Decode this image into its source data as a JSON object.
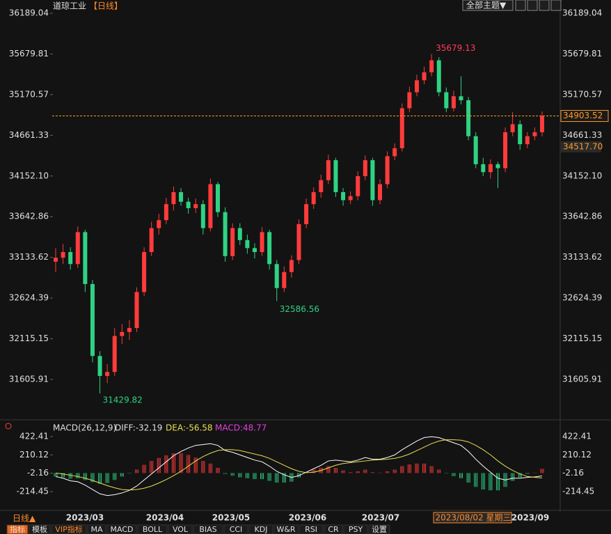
{
  "header": {
    "title": "道琼工业",
    "period": "【日线】",
    "theme_button": "全部主题▼"
  },
  "chart_data": {
    "type": "candlestick",
    "ylim": [
      31127,
      36311
    ],
    "yticks": [
      36189.04,
      35679.81,
      35170.57,
      34661.33,
      34152.1,
      33642.86,
      33133.62,
      32624.39,
      32115.15,
      31605.91
    ],
    "yticks_fmt": [
      {
        "value": 34152.1,
        "label": "34152.10"
      }
    ],
    "up_color": "#ff3b3b",
    "down_color": "#2fd283",
    "level": {
      "value": 34517.7,
      "label": "34517.70"
    },
    "candles": [
      [
        33080,
        33250,
        32950,
        33130
      ],
      [
        33130,
        33300,
        33050,
        33200
      ],
      [
        33200,
        33260,
        32980,
        33050
      ],
      [
        33050,
        33520,
        33000,
        33450
      ],
      [
        33450,
        33480,
        32700,
        32800
      ],
      [
        32800,
        32850,
        31820,
        31900
      ],
      [
        31900,
        31960,
        31429.82,
        31650
      ],
      [
        31650,
        31800,
        31560,
        31700
      ],
      [
        31700,
        32250,
        31650,
        32150
      ],
      [
        32150,
        32300,
        32050,
        32200
      ],
      [
        32200,
        32350,
        32100,
        32250
      ],
      [
        32250,
        32760,
        32200,
        32700
      ],
      [
        32700,
        33260,
        32650,
        33200
      ],
      [
        33200,
        33580,
        33150,
        33500
      ],
      [
        33500,
        33680,
        33420,
        33600
      ],
      [
        33600,
        33880,
        33550,
        33800
      ],
      [
        33800,
        34020,
        33720,
        33950
      ],
      [
        33950,
        34000,
        33780,
        33830
      ],
      [
        33830,
        33880,
        33680,
        33750
      ],
      [
        33750,
        33870,
        33690,
        33800
      ],
      [
        33800,
        33850,
        33420,
        33500
      ],
      [
        33500,
        34120,
        33460,
        34050
      ],
      [
        34050,
        34080,
        33640,
        33700
      ],
      [
        33700,
        33760,
        33080,
        33150
      ],
      [
        33150,
        33560,
        33100,
        33500
      ],
      [
        33500,
        33560,
        33290,
        33350
      ],
      [
        33350,
        33420,
        33180,
        33250
      ],
      [
        33250,
        33310,
        33120,
        33200
      ],
      [
        33200,
        33510,
        33150,
        33450
      ],
      [
        33450,
        33480,
        32980,
        33050
      ],
      [
        33050,
        33100,
        32586.56,
        32750
      ],
      [
        32750,
        33020,
        32700,
        32950
      ],
      [
        32950,
        33160,
        32880,
        33100
      ],
      [
        33100,
        33610,
        33050,
        33550
      ],
      [
        33550,
        33870,
        33500,
        33800
      ],
      [
        33800,
        34010,
        33740,
        33950
      ],
      [
        33950,
        34170,
        33880,
        34100
      ],
      [
        34100,
        34420,
        34050,
        34350
      ],
      [
        34350,
        34380,
        33890,
        33950
      ],
      [
        33950,
        34000,
        33780,
        33850
      ],
      [
        33850,
        33960,
        33800,
        33900
      ],
      [
        33900,
        34210,
        33850,
        34150
      ],
      [
        34150,
        34410,
        34100,
        34350
      ],
      [
        34350,
        34380,
        33780,
        33850
      ],
      [
        33850,
        34110,
        33800,
        34050
      ],
      [
        34050,
        34460,
        34000,
        34400
      ],
      [
        34400,
        34560,
        34350,
        34500
      ],
      [
        34500,
        35060,
        34460,
        35000
      ],
      [
        35000,
        35270,
        34950,
        35200
      ],
      [
        35200,
        35420,
        35150,
        35350
      ],
      [
        35350,
        35520,
        35300,
        35450
      ],
      [
        35450,
        35679.13,
        35400,
        35600
      ],
      [
        35600,
        35640,
        35150,
        35200
      ],
      [
        35200,
        35260,
        34950,
        35000
      ],
      [
        35000,
        35220,
        34960,
        35150
      ],
      [
        35150,
        35400,
        35050,
        35100
      ],
      [
        35100,
        35140,
        34600,
        34650
      ],
      [
        34650,
        34700,
        34250,
        34300
      ],
      [
        34300,
        34380,
        34150,
        34200
      ],
      [
        34200,
        34360,
        34120,
        34300
      ],
      [
        34300,
        34330,
        34000,
        34250
      ],
      [
        34250,
        34760,
        34200,
        34700
      ],
      [
        34700,
        34950,
        34650,
        34800
      ],
      [
        34800,
        34850,
        34480,
        34550
      ],
      [
        34550,
        34700,
        34500,
        34650
      ],
      [
        34650,
        34760,
        34600,
        34700
      ],
      [
        34700,
        34960,
        34650,
        34903.52
      ]
    ],
    "x_labels": [
      "2023/03",
      "2023/04",
      "2023/05",
      "2023/06",
      "2023/07",
      "2023/08/02 星期三",
      "2023/09"
    ],
    "macd": {
      "title": "MACD(26,12,9)",
      "diff_label": "DIFF:-32.19",
      "dea_label": "DEA:-56.58",
      "macd_label": "MACD:48.77",
      "ylim": [
        -406.7,
        478.5
      ],
      "yticks": [
        422.41,
        210.12,
        -2.16,
        -214.45
      ],
      "diff_color": "#ffffff",
      "dea_color": "#e8e050",
      "diff": [
        -40,
        -60,
        -90,
        -100,
        -140,
        -190,
        -240,
        -260,
        -250,
        -230,
        -200,
        -150,
        -80,
        -10,
        60,
        130,
        200,
        250,
        290,
        320,
        330,
        340,
        320,
        260,
        240,
        210,
        180,
        150,
        130,
        80,
        20,
        -20,
        -50,
        -30,
        10,
        50,
        90,
        140,
        150,
        140,
        130,
        150,
        180,
        160,
        160,
        180,
        210,
        270,
        320,
        370,
        410,
        420,
        410,
        380,
        350,
        320,
        250,
        160,
        80,
        10,
        -60,
        -80,
        -60,
        -60,
        -50,
        -45,
        -32.19
      ],
      "dea": [
        0,
        -10,
        -25,
        -40,
        -60,
        -85,
        -115,
        -145,
        -170,
        -190,
        -195,
        -190,
        -175,
        -150,
        -115,
        -75,
        -30,
        20,
        80,
        140,
        190,
        230,
        260,
        270,
        270,
        260,
        240,
        220,
        200,
        170,
        130,
        90,
        50,
        20,
        5,
        10,
        30,
        60,
        90,
        110,
        120,
        130,
        140,
        150,
        155,
        160,
        170,
        190,
        220,
        260,
        300,
        340,
        370,
        385,
        385,
        380,
        360,
        320,
        270,
        210,
        140,
        80,
        30,
        -10,
        -40,
        -50,
        -56.58
      ],
      "hist": [
        -40,
        -50,
        -65,
        -60,
        -80,
        -105,
        -125,
        -115,
        -80,
        -40,
        -5,
        40,
        95,
        140,
        175,
        205,
        230,
        230,
        210,
        180,
        140,
        110,
        60,
        -10,
        -30,
        -50,
        -60,
        -70,
        -70,
        -90,
        -110,
        -110,
        -100,
        -50,
        5,
        40,
        60,
        80,
        60,
        30,
        10,
        20,
        40,
        10,
        5,
        20,
        40,
        80,
        100,
        110,
        110,
        80,
        40,
        -5,
        -35,
        -60,
        -110,
        -160,
        -190,
        -200,
        -200,
        -160,
        -90,
        -50,
        -10,
        5,
        48.77
      ]
    }
  },
  "footer": {
    "period_button": "日线▲",
    "tabs": [
      "指标",
      "模板",
      "VIP指标",
      "MA",
      "MACD",
      "BOLL",
      "VOL",
      "BIAS",
      "CCI",
      "KDJ",
      "W&R",
      "RSI",
      "CR",
      "PSY",
      "设置"
    ]
  }
}
